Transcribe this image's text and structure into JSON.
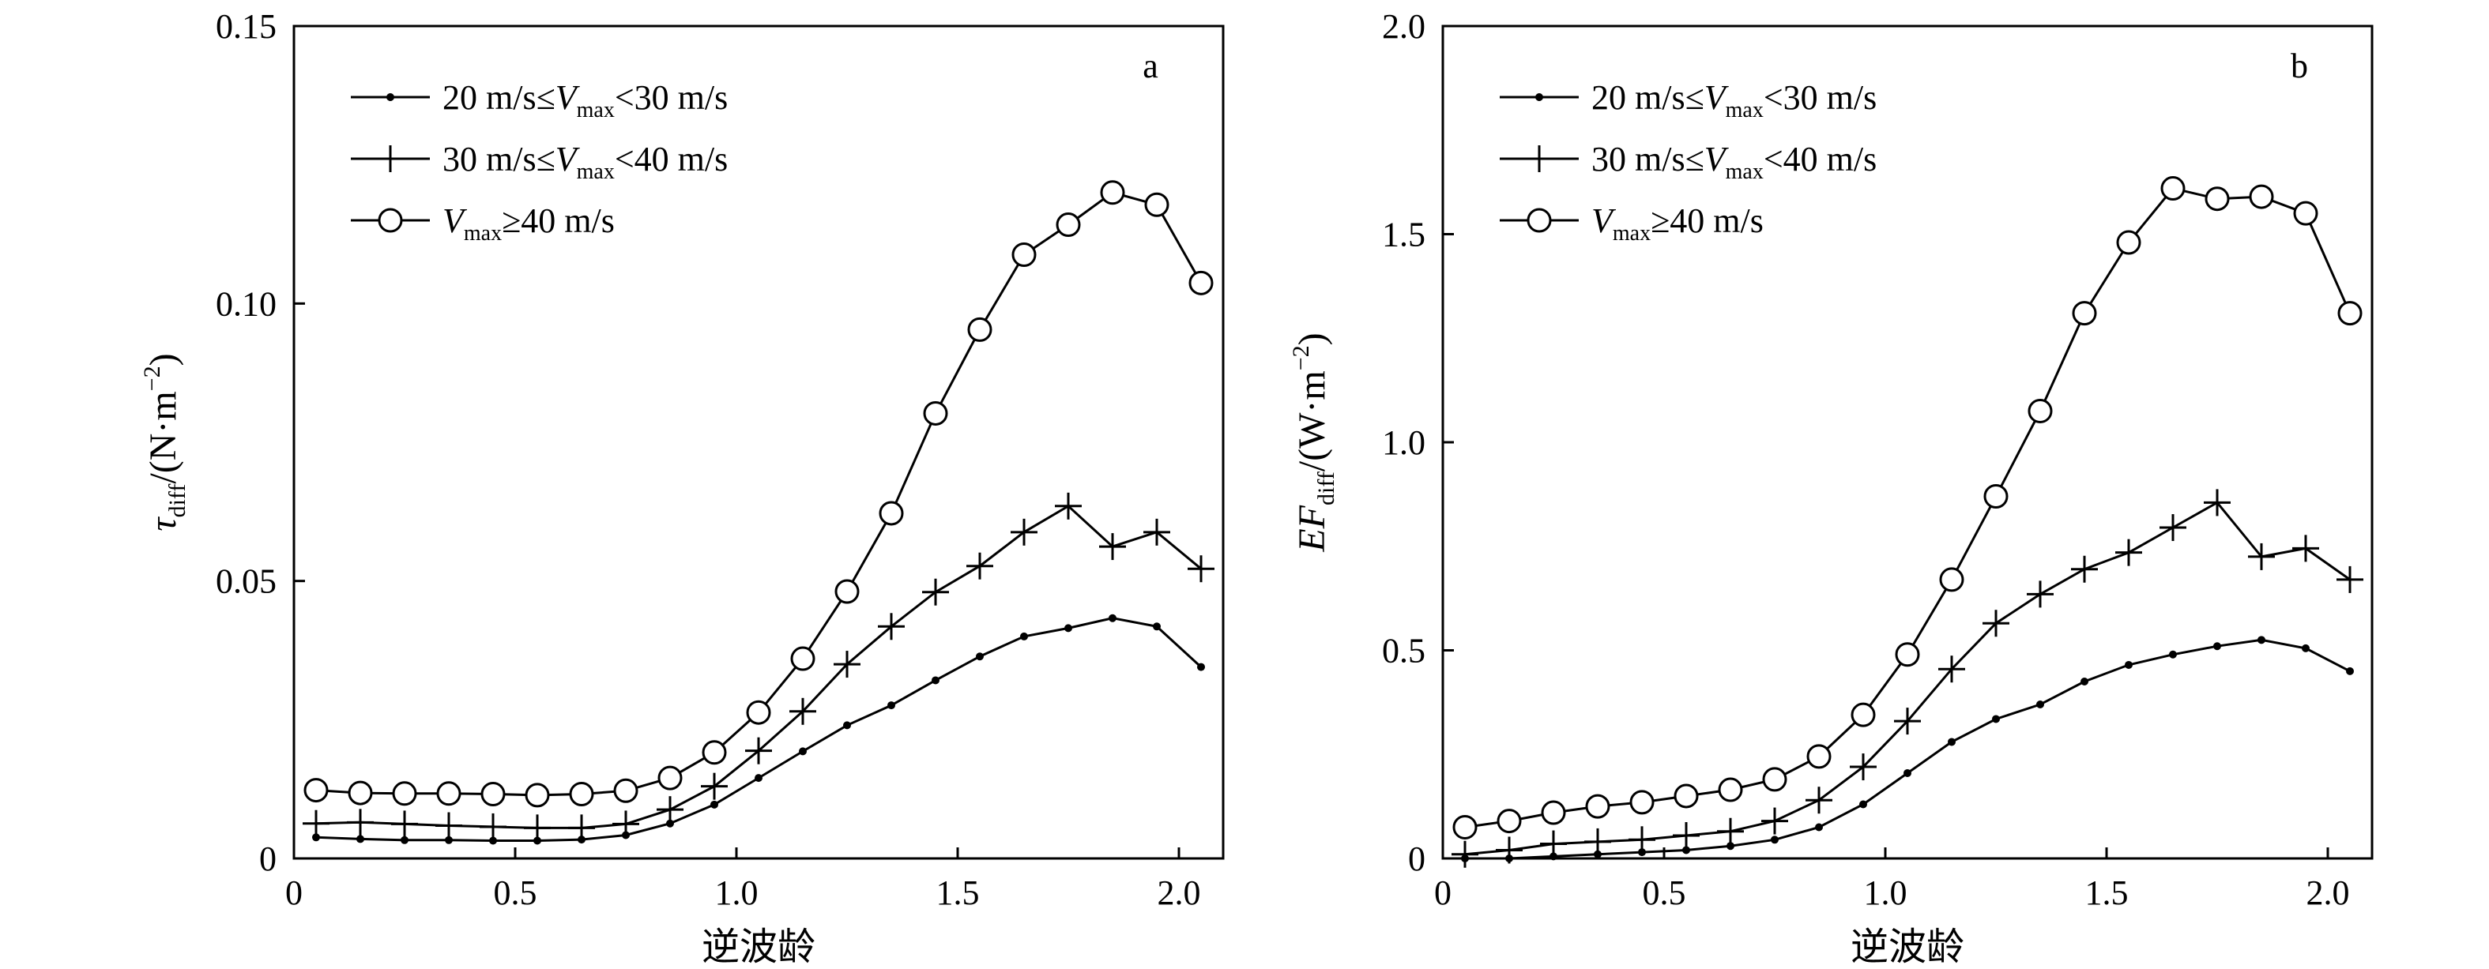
{
  "figure": {
    "panels": [
      {
        "panel_label": "a",
        "xlabel": "逆波龄",
        "ylabel": {
          "symbol": "τ",
          "subscript": "diff",
          "unit": "/(N·m",
          "unit_sup": "−2",
          "unit_end": ")"
        },
        "yticks": [
          "0",
          "0.05",
          "0.10",
          "0.15"
        ],
        "xticks": [
          "0",
          "0.5",
          "1.0",
          "1.5",
          "2.0"
        ]
      },
      {
        "panel_label": "b",
        "xlabel": "逆波龄",
        "ylabel": {
          "symbol": "EF",
          "subscript": "diff",
          "unit": "/(W·m",
          "unit_sup": "−2",
          "unit_end": ")"
        },
        "yticks": [
          "0",
          "0.5",
          "1.0",
          "1.5",
          "2.0"
        ],
        "xticks": [
          "0",
          "0.5",
          "1.0",
          "1.5",
          "2.0"
        ]
      }
    ],
    "legend": [
      {
        "marker": "dot",
        "parts": [
          "20 m/s≤",
          "V",
          "max",
          "<30 m/s"
        ]
      },
      {
        "marker": "plus",
        "parts": [
          "30 m/s≤",
          "V",
          "max",
          "<40 m/s"
        ]
      },
      {
        "marker": "circle",
        "parts": [
          "",
          "V",
          "max",
          "≥40 m/s"
        ]
      }
    ]
  },
  "chart_data": [
    {
      "type": "line",
      "panel_label": "a",
      "xlabel": "逆波龄",
      "ylabel": "τdiff/(N·m−2)",
      "xlim": [
        0,
        2.1
      ],
      "ylim": [
        0,
        0.15
      ],
      "legend_position": "top-left",
      "x": [
        0.05,
        0.15,
        0.25,
        0.35,
        0.45,
        0.55,
        0.65,
        0.75,
        0.85,
        0.95,
        1.05,
        1.15,
        1.25,
        1.35,
        1.45,
        1.55,
        1.65,
        1.75,
        1.85,
        1.95,
        2.05
      ],
      "series": [
        {
          "name": "20 m/s≤Vmax<30 m/s",
          "marker": "dot",
          "values": [
            0.0038,
            0.0035,
            0.0033,
            0.0033,
            0.0032,
            0.0032,
            0.0034,
            0.0042,
            0.0063,
            0.0097,
            0.0145,
            0.0193,
            0.024,
            0.0276,
            0.0321,
            0.0364,
            0.04,
            0.0415,
            0.0433,
            0.0418,
            0.0345
          ]
        },
        {
          "name": "30 m/s≤Vmax<40 m/s",
          "marker": "plus",
          "values": [
            0.0063,
            0.0065,
            0.0062,
            0.0059,
            0.0057,
            0.0055,
            0.0055,
            0.0062,
            0.0088,
            0.013,
            0.0194,
            0.0265,
            0.035,
            0.0418,
            0.048,
            0.0527,
            0.0588,
            0.0635,
            0.0562,
            0.0588,
            0.0522
          ]
        },
        {
          "name": "Vmax≥40 m/s",
          "marker": "circle",
          "values": [
            0.0123,
            0.0118,
            0.0117,
            0.0117,
            0.0116,
            0.0114,
            0.0116,
            0.0122,
            0.0145,
            0.0191,
            0.0263,
            0.036,
            0.0481,
            0.0622,
            0.0802,
            0.0953,
            0.1088,
            0.1142,
            0.12,
            0.1178,
            0.1037
          ]
        }
      ]
    },
    {
      "type": "line",
      "panel_label": "b",
      "xlabel": "逆波龄",
      "ylabel": "EFdiff/(W·m−2)",
      "xlim": [
        0,
        2.1
      ],
      "ylim": [
        0,
        2.0
      ],
      "legend_position": "top-left",
      "x": [
        0.05,
        0.15,
        0.25,
        0.35,
        0.45,
        0.55,
        0.65,
        0.75,
        0.85,
        0.95,
        1.05,
        1.15,
        1.25,
        1.35,
        1.45,
        1.55,
        1.65,
        1.75,
        1.85,
        1.95,
        2.05
      ],
      "series": [
        {
          "name": "20 m/s≤Vmax<30 m/s",
          "marker": "dot",
          "values": [
            0.0,
            0.0,
            0.005,
            0.01,
            0.015,
            0.02,
            0.03,
            0.045,
            0.075,
            0.13,
            0.205,
            0.28,
            0.335,
            0.37,
            0.425,
            0.465,
            0.49,
            0.51,
            0.525,
            0.505,
            0.45
          ]
        },
        {
          "name": "30 m/s≤Vmax<40 m/s",
          "marker": "plus",
          "values": [
            0.01,
            0.02,
            0.035,
            0.04,
            0.045,
            0.055,
            0.065,
            0.09,
            0.14,
            0.22,
            0.33,
            0.455,
            0.565,
            0.635,
            0.695,
            0.735,
            0.795,
            0.855,
            0.725,
            0.745,
            0.67
          ]
        },
        {
          "name": "Vmax≥40 m/s",
          "marker": "circle",
          "values": [
            0.075,
            0.09,
            0.11,
            0.125,
            0.135,
            0.15,
            0.165,
            0.19,
            0.245,
            0.345,
            0.49,
            0.67,
            0.87,
            1.075,
            1.31,
            1.48,
            1.61,
            1.585,
            1.59,
            1.55,
            1.31
          ]
        }
      ]
    }
  ]
}
